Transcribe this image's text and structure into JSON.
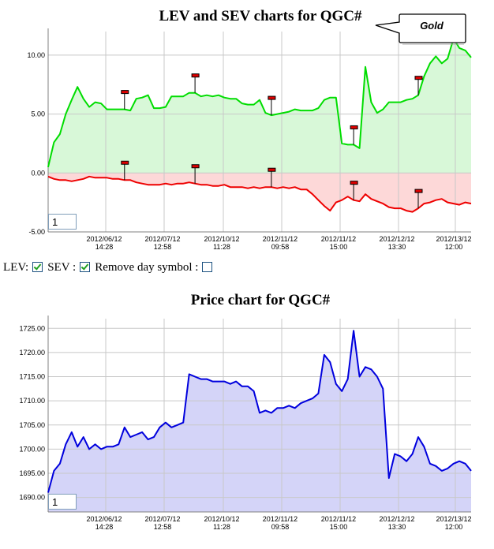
{
  "chart_data": [
    {
      "type": "area",
      "title": "LEV and SEV charts for QGC#",
      "xlabel": "",
      "ylabel": "",
      "ylim": [
        -5,
        12
      ],
      "yticks": [
        "10.00",
        "5.00",
        "0.00",
        "-5.00"
      ],
      "x_tick_labels": [
        [
          "2012/06/12",
          "14:28"
        ],
        [
          "2012/07/12",
          "12:58"
        ],
        [
          "2012/10/12",
          "11:28"
        ],
        [
          "2012/11/12",
          "09:58"
        ],
        [
          "2012/11/12",
          "15:00"
        ],
        [
          "2012/12/12",
          "13:30"
        ],
        [
          "2012/13/12",
          "12:00"
        ]
      ],
      "grid": true,
      "annotation": "Gold",
      "series": [
        {
          "name": "LEV",
          "color": "#00dd00",
          "fill": "#d8f8d8",
          "x": [
            0,
            1,
            2,
            3,
            4,
            5,
            6,
            7,
            8,
            9,
            10,
            11,
            12,
            13,
            14,
            15,
            16,
            17,
            18,
            19,
            20,
            21,
            22,
            23,
            24,
            25,
            26,
            27,
            28,
            29,
            30,
            31,
            32,
            33,
            34,
            35,
            36,
            37,
            38,
            39,
            40,
            41,
            42,
            43,
            44,
            45,
            46,
            47,
            48,
            49,
            50,
            51,
            52,
            53,
            54,
            55,
            56,
            57,
            58,
            59,
            60,
            61,
            62,
            63,
            64,
            65,
            66,
            67,
            68,
            69,
            70,
            71,
            72
          ],
          "values": [
            0.5,
            2.6,
            3.3,
            5.0,
            6.2,
            7.3,
            6.3,
            5.6,
            6.0,
            5.9,
            5.4,
            5.4,
            5.4,
            5.4,
            5.3,
            6.3,
            6.4,
            6.6,
            5.5,
            5.5,
            5.6,
            6.5,
            6.5,
            6.5,
            6.8,
            6.8,
            6.5,
            6.6,
            6.5,
            6.6,
            6.4,
            6.3,
            6.3,
            5.9,
            5.8,
            5.8,
            6.2,
            5.1,
            4.9,
            5.0,
            5.1,
            5.2,
            5.4,
            5.3,
            5.3,
            5.3,
            5.5,
            6.2,
            6.4,
            6.4,
            2.5,
            2.4,
            2.4,
            2.1,
            9.0,
            6.0,
            5.1,
            5.4,
            6.0,
            6.0,
            6.0,
            6.2,
            6.3,
            6.6,
            8.2,
            9.3,
            9.9,
            9.3,
            9.7,
            11.4,
            10.6,
            10.4,
            9.8
          ]
        },
        {
          "name": "SEV",
          "color": "#ee0000",
          "fill": "#fdd8d8",
          "x": [
            0,
            1,
            2,
            3,
            4,
            5,
            6,
            7,
            8,
            9,
            10,
            11,
            12,
            13,
            14,
            15,
            16,
            17,
            18,
            19,
            20,
            21,
            22,
            23,
            24,
            25,
            26,
            27,
            28,
            29,
            30,
            31,
            32,
            33,
            34,
            35,
            36,
            37,
            38,
            39,
            40,
            41,
            42,
            43,
            44,
            45,
            46,
            47,
            48,
            49,
            50,
            51,
            52,
            53,
            54,
            55,
            56,
            57,
            58,
            59,
            60,
            61,
            62,
            63,
            64,
            65,
            66,
            67,
            68,
            69,
            70,
            71,
            72
          ],
          "values": [
            -0.3,
            -0.5,
            -0.6,
            -0.6,
            -0.7,
            -0.6,
            -0.5,
            -0.3,
            -0.4,
            -0.4,
            -0.4,
            -0.5,
            -0.5,
            -0.6,
            -0.6,
            -0.8,
            -0.9,
            -1.0,
            -1.0,
            -1.0,
            -0.9,
            -1.0,
            -0.9,
            -0.9,
            -0.8,
            -0.9,
            -1.0,
            -1.0,
            -1.1,
            -1.1,
            -1.0,
            -1.2,
            -1.2,
            -1.2,
            -1.3,
            -1.2,
            -1.3,
            -1.2,
            -1.2,
            -1.3,
            -1.2,
            -1.3,
            -1.2,
            -1.4,
            -1.4,
            -1.8,
            -2.3,
            -2.8,
            -3.2,
            -2.5,
            -2.3,
            -2.0,
            -2.3,
            -2.4,
            -1.8,
            -2.2,
            -2.4,
            -2.6,
            -2.9,
            -3.0,
            -3.0,
            -3.2,
            -3.3,
            -3.0,
            -2.6,
            -2.5,
            -2.3,
            -2.2,
            -2.5,
            -2.6,
            -2.7,
            -2.5,
            -2.6
          ]
        }
      ],
      "day_markers": [
        {
          "x": 13,
          "series": "LEV"
        },
        {
          "x": 25,
          "series": "LEV"
        },
        {
          "x": 38,
          "series": "LEV"
        },
        {
          "x": 52,
          "series": "LEV"
        },
        {
          "x": 63,
          "series": "LEV"
        },
        {
          "x": 13,
          "series": "SEV"
        },
        {
          "x": 25,
          "series": "SEV"
        },
        {
          "x": 38,
          "series": "SEV"
        },
        {
          "x": 52,
          "series": "SEV"
        },
        {
          "x": 63,
          "series": "SEV"
        }
      ],
      "page_input_value": "1"
    },
    {
      "type": "area",
      "title": "Price chart for QGC#",
      "xlabel": "",
      "ylabel": "",
      "ylim": [
        1687,
        1727
      ],
      "yticks": [
        "1725.00",
        "1720.00",
        "1715.00",
        "1710.00",
        "1705.00",
        "1700.00",
        "1695.00",
        "1690.00"
      ],
      "x_tick_labels": [
        [
          "2012/06/12",
          "14:28"
        ],
        [
          "2012/07/12",
          "12:58"
        ],
        [
          "2012/10/12",
          "11:28"
        ],
        [
          "2012/11/12",
          "09:58"
        ],
        [
          "2012/11/12",
          "15:00"
        ],
        [
          "2012/12/12",
          "13:30"
        ],
        [
          "2012/13/12",
          "12:00"
        ]
      ],
      "grid": true,
      "series": [
        {
          "name": "Price",
          "color": "#0000dd",
          "fill": "#d4d4f8",
          "x": [
            0,
            1,
            2,
            3,
            4,
            5,
            6,
            7,
            8,
            9,
            10,
            11,
            12,
            13,
            14,
            15,
            16,
            17,
            18,
            19,
            20,
            21,
            22,
            23,
            24,
            25,
            26,
            27,
            28,
            29,
            30,
            31,
            32,
            33,
            34,
            35,
            36,
            37,
            38,
            39,
            40,
            41,
            42,
            43,
            44,
            45,
            46,
            47,
            48,
            49,
            50,
            51,
            52,
            53,
            54,
            55,
            56,
            57,
            58,
            59,
            60,
            61,
            62,
            63,
            64,
            65,
            66,
            67,
            68,
            69,
            70,
            71,
            72
          ],
          "values": [
            1691.0,
            1695.5,
            1697.0,
            1701.0,
            1703.5,
            1700.5,
            1702.5,
            1700.0,
            1701.0,
            1700.0,
            1700.5,
            1700.5,
            1701.0,
            1704.5,
            1702.5,
            1703.0,
            1703.5,
            1702.0,
            1702.5,
            1704.5,
            1705.5,
            1704.5,
            1705.0,
            1705.5,
            1715.5,
            1715.0,
            1714.5,
            1714.5,
            1714.0,
            1714.0,
            1714.0,
            1713.5,
            1714.0,
            1713.0,
            1713.0,
            1712.0,
            1707.5,
            1708.0,
            1707.5,
            1708.5,
            1708.5,
            1709.0,
            1708.5,
            1709.5,
            1710.0,
            1710.5,
            1711.5,
            1719.5,
            1718.0,
            1713.5,
            1712.0,
            1714.5,
            1724.5,
            1715.0,
            1717.0,
            1716.5,
            1715.0,
            1712.5,
            1694.0,
            1699.0,
            1698.5,
            1697.5,
            1699.0,
            1702.5,
            1700.5,
            1697.0,
            1696.5,
            1695.5,
            1696.0,
            1697.0,
            1697.5,
            1697.0,
            1695.5
          ]
        }
      ],
      "page_input_value": "1"
    }
  ],
  "controls": {
    "lev_label": "LEV:",
    "sev_label": "SEV :",
    "remove_label": "Remove day symbol :",
    "lev_checked": true,
    "sev_checked": true,
    "remove_checked": false
  }
}
